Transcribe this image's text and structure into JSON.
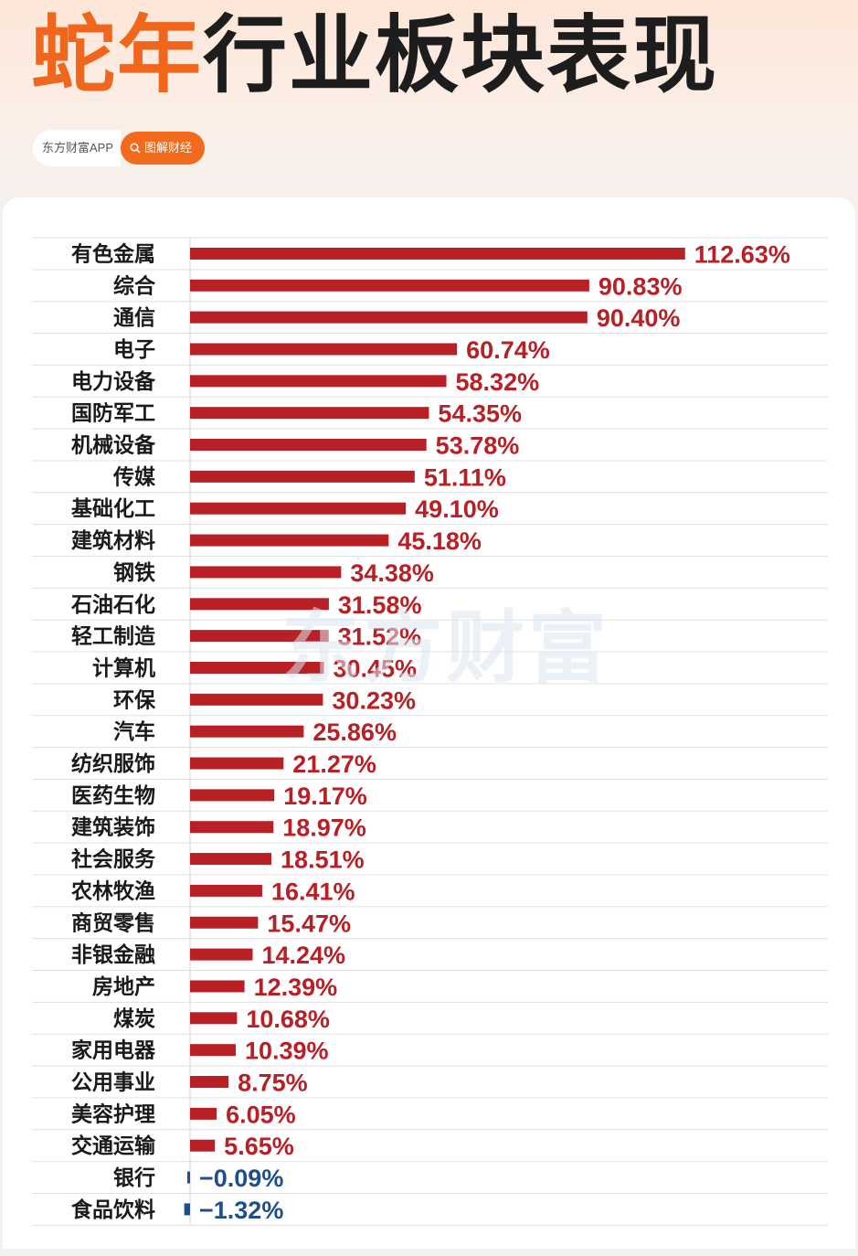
{
  "header": {
    "title_accent": "蛇年",
    "title_rest": "行业板块表现",
    "source": "东方财富APP",
    "search_label": "图解财经"
  },
  "watermark": "东方财富",
  "colors": {
    "accent": "#f0661c",
    "positive_bar": "#b82025",
    "negative_bar": "#1f4e8c"
  },
  "chart_data": {
    "type": "bar",
    "orientation": "horizontal",
    "title": "蛇年行业板块表现",
    "xlabel": "",
    "ylabel": "",
    "unit": "%",
    "xlim": [
      -1.32,
      112.63
    ],
    "grid": true,
    "categories": [
      "有色金属",
      "综合",
      "通信",
      "电子",
      "电力设备",
      "国防军工",
      "机械设备",
      "传媒",
      "基础化工",
      "建筑材料",
      "钢铁",
      "石油石化",
      "轻工制造",
      "计算机",
      "环保",
      "汽车",
      "纺织服饰",
      "医药生物",
      "建筑装饰",
      "社会服务",
      "农林牧渔",
      "商贸零售",
      "非银金融",
      "房地产",
      "煤炭",
      "家用电器",
      "公用事业",
      "美容护理",
      "交通运输",
      "银行",
      "食品饮料"
    ],
    "values": [
      112.63,
      90.83,
      90.4,
      60.74,
      58.32,
      54.35,
      53.78,
      51.11,
      49.1,
      45.18,
      34.38,
      31.58,
      31.52,
      30.45,
      30.23,
      25.86,
      21.27,
      19.17,
      18.97,
      18.51,
      16.41,
      15.47,
      14.24,
      12.39,
      10.68,
      10.39,
      8.75,
      6.05,
      5.65,
      -0.09,
      -1.32
    ],
    "labels": [
      "112.63%",
      "90.83%",
      "90.40%",
      "60.74%",
      "58.32%",
      "54.35%",
      "53.78%",
      "51.11%",
      "49.10%",
      "45.18%",
      "34.38%",
      "31.58%",
      "31.52%",
      "30.45%",
      "30.23%",
      "25.86%",
      "21.27%",
      "19.17%",
      "18.97%",
      "18.51%",
      "16.41%",
      "15.47%",
      "14.24%",
      "12.39%",
      "10.68%",
      "10.39%",
      "8.75%",
      "6.05%",
      "5.65%",
      "−0.09%",
      "−1.32%"
    ]
  }
}
